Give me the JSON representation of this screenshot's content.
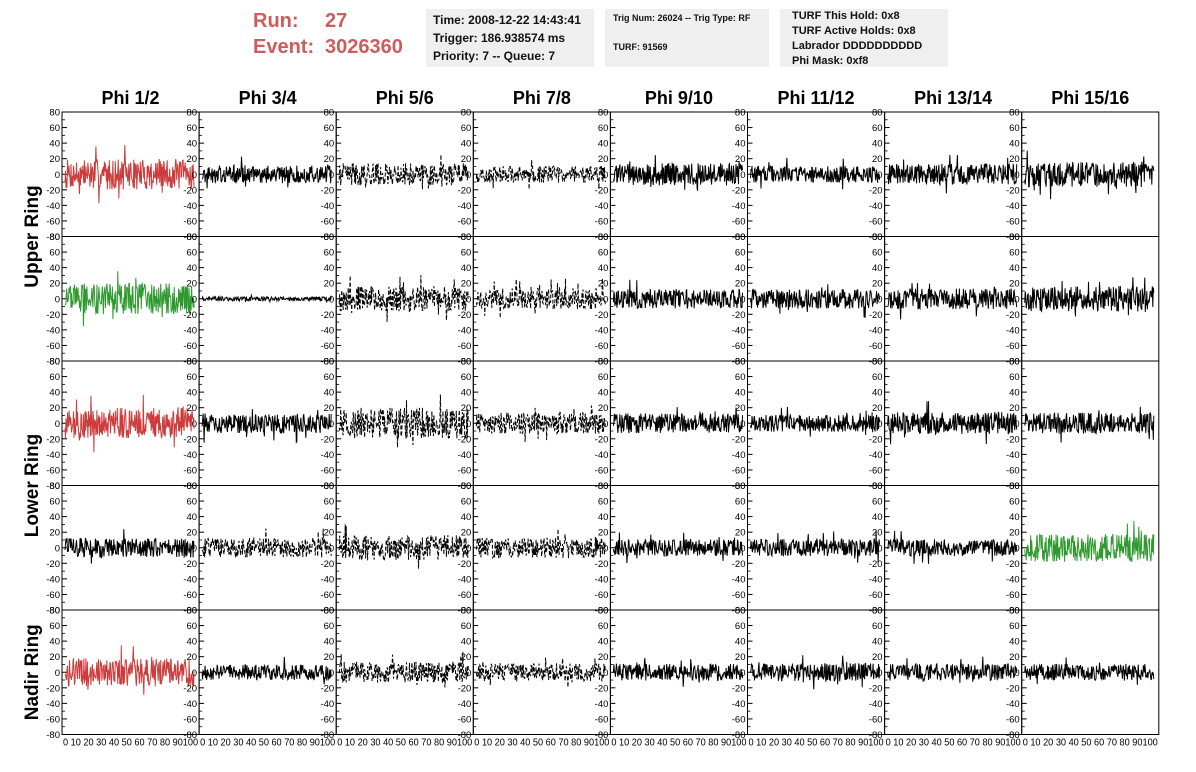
{
  "run_info": {
    "run_label": "Run:",
    "run_value": "27",
    "event_label": "Event:",
    "event_value": "3026360"
  },
  "header_box_1": {
    "time": "Time: 2008-12-22 14:43:41",
    "trigger": "Trigger: 186.938574 ms",
    "priority_queue": "Priority: 7 -- Queue: 7"
  },
  "header_box_2": {
    "trig_num_type": "Trig Num: 26024 -- Trig Type: RF",
    "turf": "TURF: 91569"
  },
  "header_box_3": {
    "turf_this_hold": "TURF This Hold: 0x8",
    "turf_active_holds": "TURF Active Holds: 0x8",
    "labrador": "Labrador DDDDDDDDDD",
    "phi_mask": "Phi Mask: 0xf8"
  },
  "colors": {
    "red_trace": "#cd3c3c",
    "green_trace": "#2e9a2e",
    "black_trace": "#000000",
    "run_text": "#cd5c5c",
    "box_bg": "#efefef"
  },
  "chart_data": {
    "type": "line",
    "title": "",
    "columns": [
      "Phi 1/2",
      "Phi 3/4",
      "Phi 5/6",
      "Phi 7/8",
      "Phi 9/10",
      "Phi 11/12",
      "Phi 13/14",
      "Phi 15/16"
    ],
    "ring_labels": [
      "Upper Ring",
      "Lower Ring",
      "Nadir Ring"
    ],
    "ring_row_spans": [
      [
        0,
        1
      ],
      [
        2,
        3
      ],
      [
        4,
        4
      ]
    ],
    "row_count": 5,
    "ylim": [
      -80,
      80
    ],
    "yticks": [
      80,
      60,
      40,
      20,
      0,
      -20,
      -40,
      -60,
      -80
    ],
    "xlim": [
      0,
      100
    ],
    "xticks": [
      0,
      10,
      20,
      30,
      40,
      50,
      60,
      70,
      80,
      90,
      100
    ],
    "x_tick_label_row": "0 10 20 30 40 50 60 70 80 90100",
    "grid": false,
    "traces": [
      [
        {
          "c": "red",
          "s": "solid",
          "a": 22
        },
        {
          "c": "black",
          "s": "solid",
          "a": 13
        },
        {
          "c": "black",
          "s": "dashed",
          "a": 16
        },
        {
          "c": "black",
          "s": "dashed",
          "a": 12
        },
        {
          "c": "black",
          "s": "solid",
          "a": 16
        },
        {
          "c": "black",
          "s": "solid",
          "a": 12
        },
        {
          "c": "black",
          "s": "solid",
          "a": 15
        },
        {
          "c": "black",
          "s": "solid",
          "a": 18
        }
      ],
      [
        {
          "c": "green",
          "s": "solid",
          "a": 22
        },
        {
          "c": "black",
          "s": "solid",
          "a": 3
        },
        {
          "c": "black",
          "s": "dashed",
          "a": 18
        },
        {
          "c": "black",
          "s": "dashed",
          "a": 15
        },
        {
          "c": "black",
          "s": "solid",
          "a": 14
        },
        {
          "c": "black",
          "s": "solid",
          "a": 14
        },
        {
          "c": "black",
          "s": "solid",
          "a": 15
        },
        {
          "c": "black",
          "s": "solid",
          "a": 18
        }
      ],
      [
        {
          "c": "red",
          "s": "solid",
          "a": 22
        },
        {
          "c": "black",
          "s": "solid",
          "a": 14
        },
        {
          "c": "black",
          "s": "dashed",
          "a": 22
        },
        {
          "c": "black",
          "s": "dashed",
          "a": 15
        },
        {
          "c": "black",
          "s": "solid",
          "a": 14
        },
        {
          "c": "black",
          "s": "solid",
          "a": 12
        },
        {
          "c": "black",
          "s": "solid",
          "a": 16
        },
        {
          "c": "black",
          "s": "solid",
          "a": 15
        }
      ],
      [
        {
          "c": "black",
          "s": "solid",
          "a": 14
        },
        {
          "c": "black",
          "s": "dashed",
          "a": 14
        },
        {
          "c": "black",
          "s": "dashed",
          "a": 18
        },
        {
          "c": "black",
          "s": "dashed",
          "a": 15
        },
        {
          "c": "black",
          "s": "solid",
          "a": 12
        },
        {
          "c": "black",
          "s": "solid",
          "a": 12
        },
        {
          "c": "black",
          "s": "solid",
          "a": 12
        },
        {
          "c": "green",
          "s": "solid",
          "a": 20
        }
      ],
      [
        {
          "c": "red",
          "s": "solid",
          "a": 20
        },
        {
          "c": "black",
          "s": "solid",
          "a": 11
        },
        {
          "c": "black",
          "s": "dashed",
          "a": 15
        },
        {
          "c": "black",
          "s": "dashed",
          "a": 13
        },
        {
          "c": "black",
          "s": "solid",
          "a": 12
        },
        {
          "c": "black",
          "s": "solid",
          "a": 13
        },
        {
          "c": "black",
          "s": "solid",
          "a": 12
        },
        {
          "c": "black",
          "s": "solid",
          "a": 12
        }
      ]
    ]
  }
}
